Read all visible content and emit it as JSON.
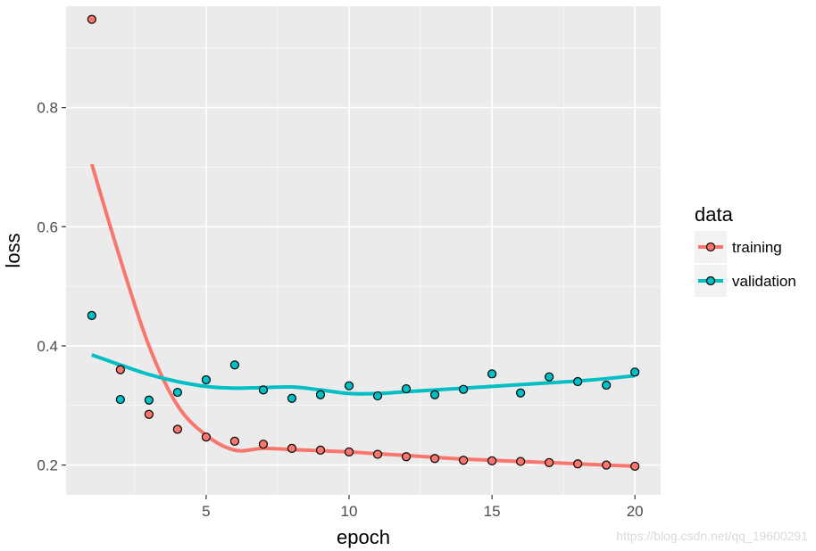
{
  "chart_data": {
    "type": "scatter",
    "xlabel": "epoch",
    "ylabel": "loss",
    "xlim": [
      0.1,
      20.9
    ],
    "ylim": [
      0.15,
      0.97
    ],
    "xticks": [
      5,
      10,
      15,
      20
    ],
    "yticks": [
      0.2,
      0.4,
      0.6,
      0.8
    ],
    "xtick_labels": [
      "5",
      "10",
      "15",
      "20"
    ],
    "ytick_labels": [
      "0.2",
      "0.4",
      "0.6",
      "0.8"
    ],
    "grid": true,
    "legend": {
      "title": "data",
      "position": "right",
      "entries": [
        "training",
        "validation"
      ]
    },
    "series": [
      {
        "name": "training",
        "color": "#f8766d",
        "x": [
          1,
          2,
          3,
          4,
          5,
          6,
          7,
          8,
          9,
          10,
          11,
          12,
          13,
          14,
          15,
          16,
          17,
          18,
          19,
          20
        ],
        "points": [
          0.948,
          0.36,
          0.285,
          0.26,
          0.247,
          0.24,
          0.235,
          0.228,
          0.225,
          0.222,
          0.218,
          0.214,
          0.211,
          0.208,
          0.207,
          0.206,
          0.204,
          0.202,
          0.2,
          0.198
        ],
        "smooth": [
          0.705,
          0.545,
          0.4,
          0.3,
          0.25,
          0.225,
          0.228,
          0.226,
          0.224,
          0.222,
          0.219,
          0.216,
          0.213,
          0.21,
          0.208,
          0.206,
          0.204,
          0.202,
          0.2,
          0.198
        ]
      },
      {
        "name": "validation",
        "color": "#00bfc4",
        "x": [
          1,
          2,
          3,
          4,
          5,
          6,
          7,
          8,
          9,
          10,
          11,
          12,
          13,
          14,
          15,
          16,
          17,
          18,
          19,
          20
        ],
        "points": [
          0.451,
          0.31,
          0.309,
          0.322,
          0.343,
          0.368,
          0.326,
          0.312,
          0.318,
          0.333,
          0.316,
          0.328,
          0.318,
          0.327,
          0.353,
          0.321,
          0.348,
          0.34,
          0.334,
          0.356
        ],
        "smooth": [
          0.385,
          0.368,
          0.352,
          0.34,
          0.332,
          0.329,
          0.33,
          0.331,
          0.326,
          0.32,
          0.32,
          0.323,
          0.326,
          0.329,
          0.332,
          0.335,
          0.338,
          0.341,
          0.345,
          0.35
        ]
      }
    ]
  },
  "watermark": "https://blog.csdn.net/qq_19600291",
  "colors": {
    "panel": "#ebebeb",
    "grid": "#ffffff",
    "point_stroke": "#000000"
  }
}
